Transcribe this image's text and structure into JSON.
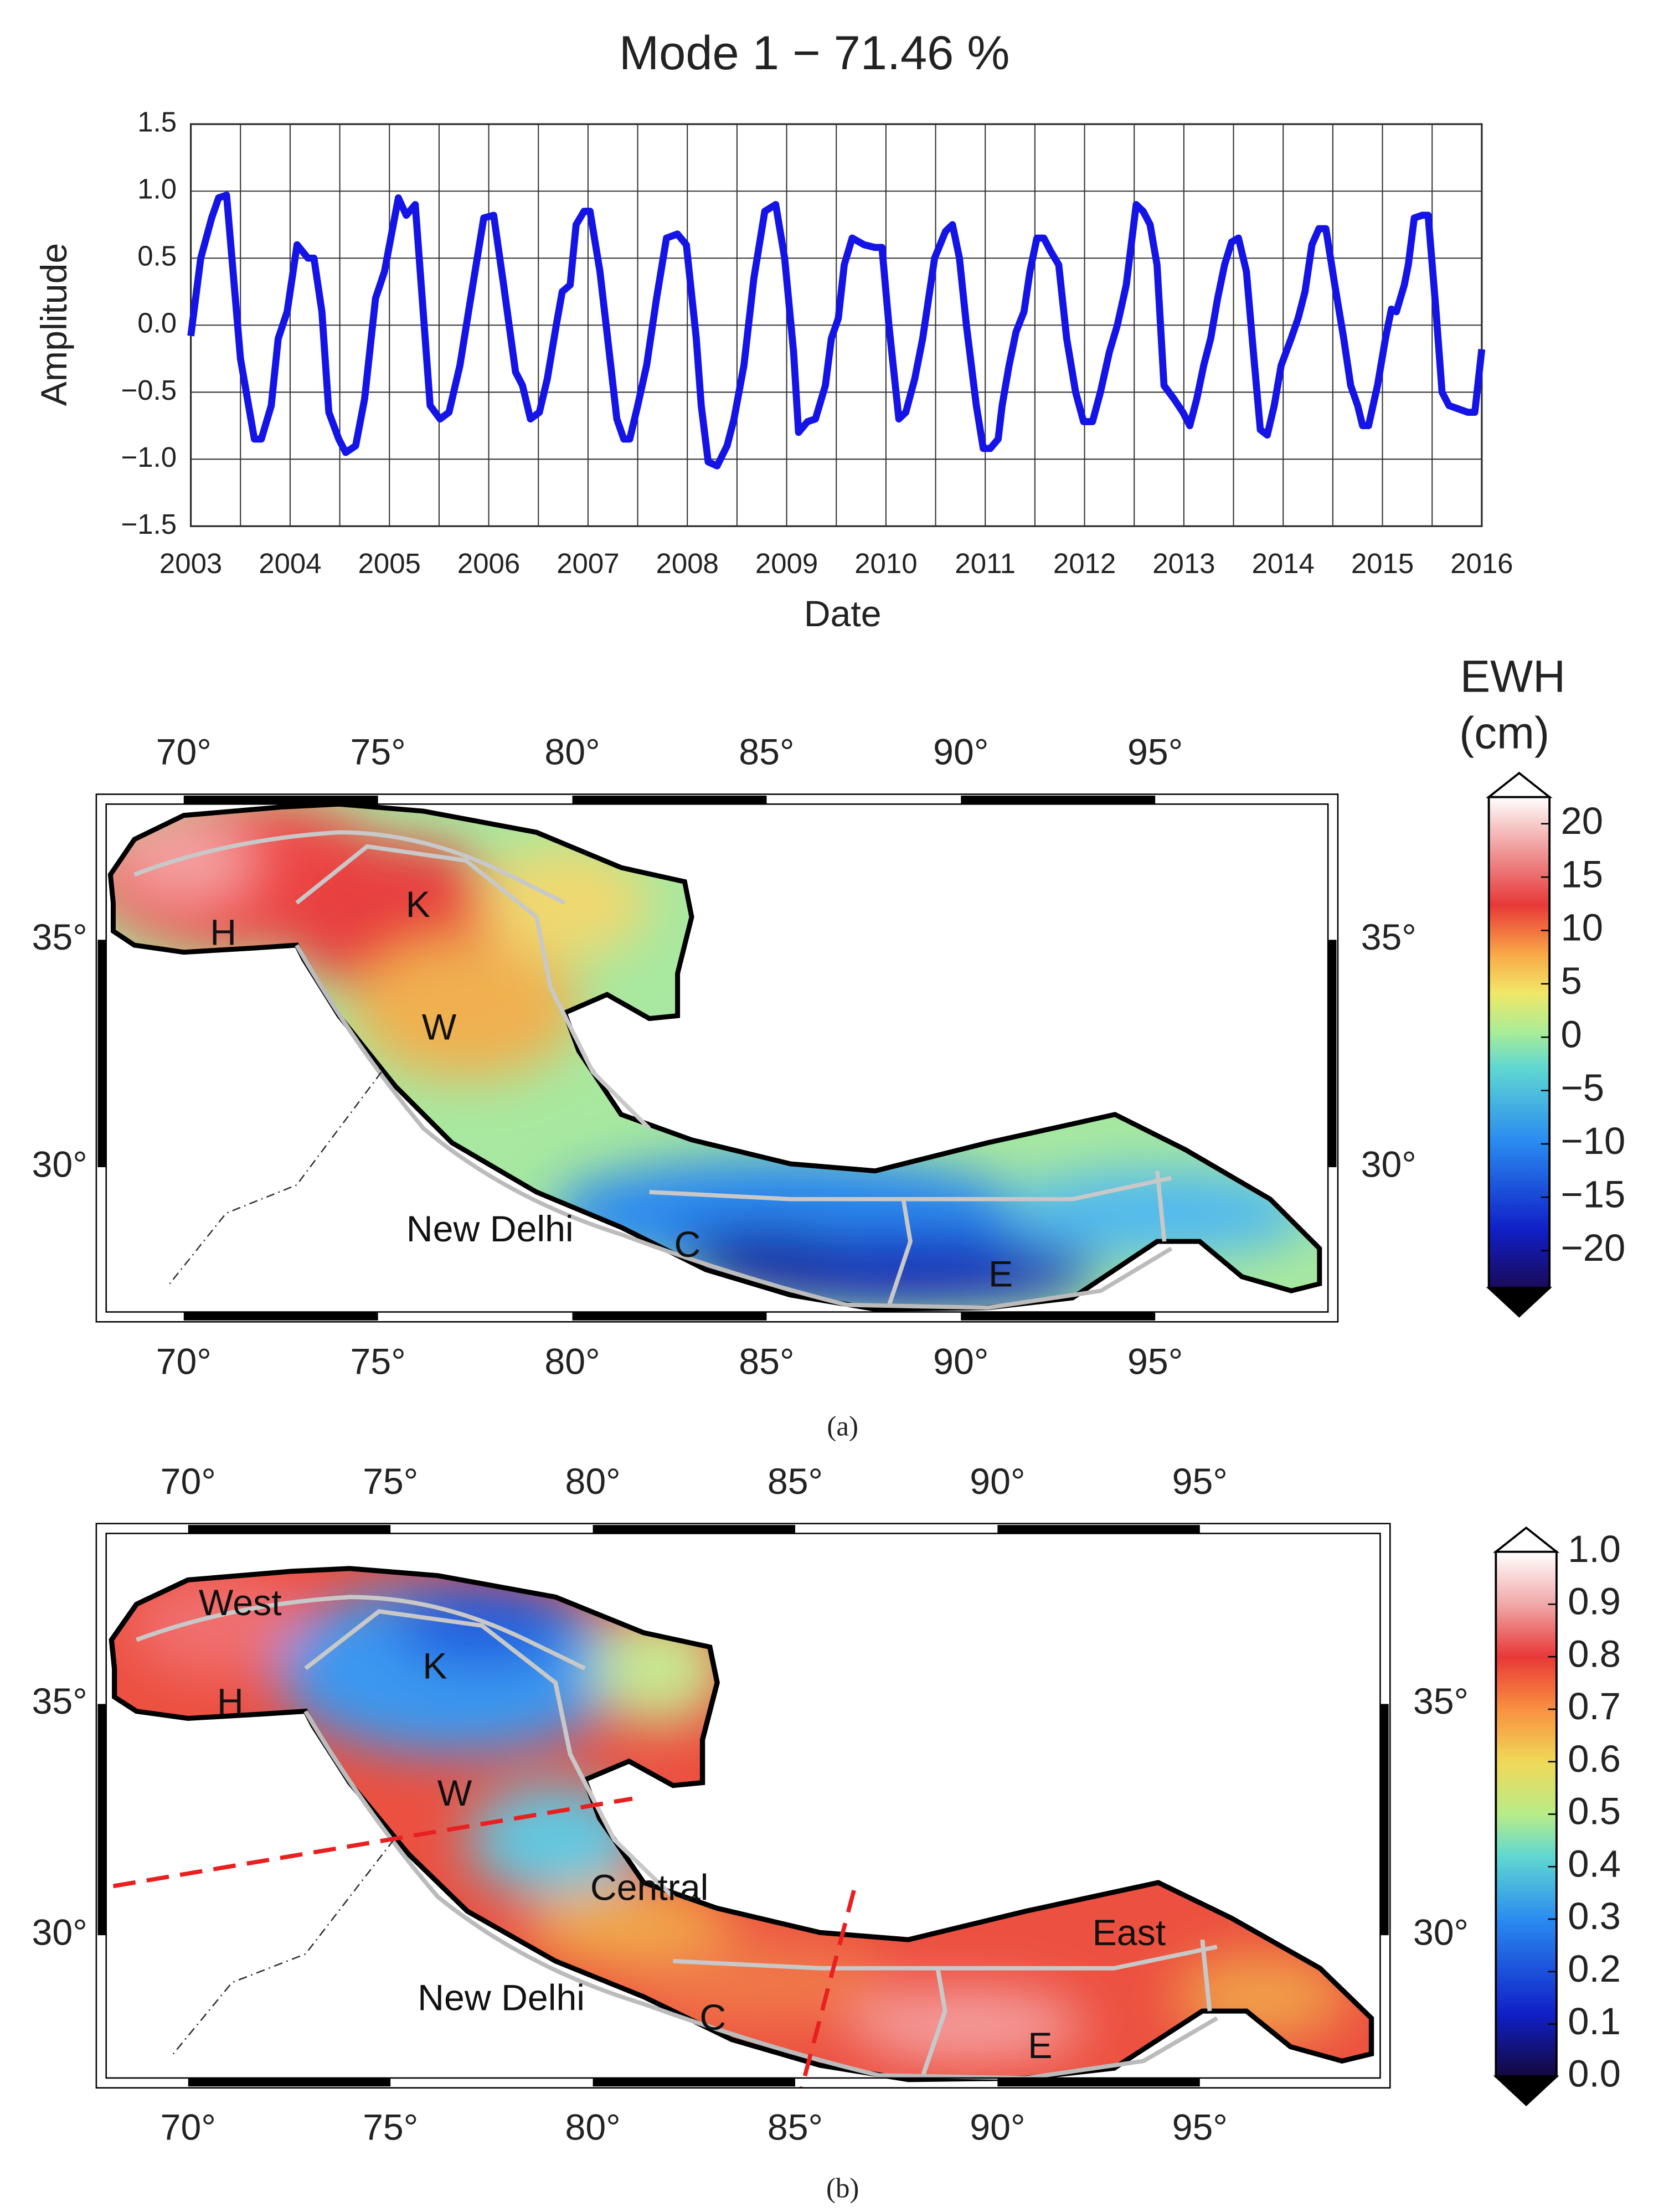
{
  "chart_data": {
    "type": "line",
    "title": "Mode 1 − 71.46 %",
    "x_label": "Date",
    "y_label": "Amplitude",
    "color": "#1414e6",
    "x": [
      2003.0,
      2003.1,
      2003.21,
      2003.28,
      2003.36,
      2003.5,
      2003.64,
      2003.71,
      2003.81,
      2003.88,
      2003.97,
      2004.07,
      2004.18,
      2004.24,
      2004.32,
      2004.39,
      2004.49,
      2004.56,
      2004.66,
      2004.75,
      2004.86,
      2004.95,
      2005.09,
      2005.17,
      2005.26,
      2005.33,
      2005.41,
      2005.51,
      2005.6,
      2005.71,
      2005.84,
      2005.95,
      2006.05,
      2006.15,
      2006.27,
      2006.34,
      2006.42,
      2006.51,
      2006.59,
      2006.68,
      2006.74,
      2006.82,
      2006.88,
      2006.96,
      2007.02,
      2007.12,
      2007.19,
      2007.29,
      2007.36,
      2007.42,
      2007.5,
      2007.59,
      2007.69,
      2007.79,
      2007.9,
      2007.99,
      2008.09,
      2008.14,
      2008.21,
      2008.3,
      2008.4,
      2008.47,
      2008.57,
      2008.67,
      2008.78,
      2008.89,
      2008.98,
      2009.07,
      2009.12,
      2009.21,
      2009.29,
      2009.39,
      2009.45,
      2009.52,
      2009.58,
      2009.66,
      2009.78,
      2009.89,
      2009.96,
      2010.03,
      2010.13,
      2010.2,
      2010.29,
      2010.37,
      2010.49,
      2010.6,
      2010.67,
      2010.74,
      2010.81,
      2010.91,
      2010.98,
      2011.05,
      2011.13,
      2011.17,
      2011.24,
      2011.31,
      2011.39,
      2011.45,
      2011.52,
      2011.59,
      2011.66,
      2011.74,
      2011.82,
      2011.91,
      2011.99,
      2012.08,
      2012.16,
      2012.25,
      2012.33,
      2012.42,
      2012.52,
      2012.59,
      2012.66,
      2012.73,
      2012.8,
      2012.9,
      2012.99,
      2013.06,
      2013.13,
      2013.2,
      2013.27,
      2013.34,
      2013.41,
      2013.48,
      2013.55,
      2013.63,
      2013.7,
      2013.77,
      2013.84,
      2013.91,
      2013.98,
      2014.08,
      2014.15,
      2014.22,
      2014.29,
      2014.36,
      2014.43,
      2014.52,
      2014.61,
      2014.68,
      2014.75,
      2014.8,
      2014.86,
      2014.95,
      2015.03,
      2015.09,
      2015.14,
      2015.22,
      2015.26,
      2015.32,
      2015.4,
      2015.46,
      2015.54,
      2015.6,
      2015.67,
      2015.86,
      2015.93,
      2016.0
    ],
    "values": [
      -0.08,
      0.5,
      0.8,
      0.95,
      0.97,
      -0.25,
      -0.85,
      -0.85,
      -0.6,
      -0.1,
      0.1,
      0.6,
      0.5,
      0.5,
      0.1,
      -0.65,
      -0.85,
      -0.95,
      -0.9,
      -0.55,
      0.2,
      0.4,
      0.95,
      0.82,
      0.9,
      0.2,
      -0.6,
      -0.7,
      -0.65,
      -0.3,
      0.3,
      0.8,
      0.82,
      0.3,
      -0.35,
      -0.45,
      -0.7,
      -0.65,
      -0.4,
      0.0,
      0.25,
      0.3,
      0.75,
      0.85,
      0.85,
      0.4,
      -0.05,
      -0.7,
      -0.85,
      -0.85,
      -0.6,
      -0.3,
      0.2,
      0.65,
      0.68,
      0.6,
      -0.1,
      -0.6,
      -1.02,
      -1.05,
      -0.9,
      -0.7,
      -0.3,
      0.35,
      0.85,
      0.9,
      0.5,
      -0.2,
      -0.8,
      -0.72,
      -0.7,
      -0.45,
      -0.1,
      0.05,
      0.45,
      0.65,
      0.6,
      0.58,
      0.58,
      0.0,
      -0.7,
      -0.65,
      -0.4,
      -0.1,
      0.5,
      0.7,
      0.75,
      0.5,
      0.0,
      -0.6,
      -0.92,
      -0.92,
      -0.85,
      -0.6,
      -0.3,
      -0.05,
      0.1,
      0.4,
      0.65,
      0.65,
      0.55,
      0.45,
      -0.1,
      -0.5,
      -0.72,
      -0.72,
      -0.5,
      -0.2,
      0.0,
      0.3,
      0.9,
      0.85,
      0.75,
      0.45,
      -0.45,
      -0.55,
      -0.65,
      -0.75,
      -0.55,
      -0.3,
      -0.1,
      0.2,
      0.45,
      0.62,
      0.65,
      0.4,
      -0.2,
      -0.78,
      -0.82,
      -0.6,
      -0.3,
      -0.1,
      0.05,
      0.25,
      0.6,
      0.72,
      0.72,
      0.3,
      -0.1,
      -0.45,
      -0.6,
      -0.75,
      -0.75,
      -0.45,
      -0.1,
      0.12,
      0.1,
      0.3,
      0.45,
      0.8,
      0.82,
      0.82,
      0.1,
      -0.5,
      -0.6,
      -0.65,
      -0.65,
      -0.18
    ],
    "xlim": [
      2003,
      2016
    ],
    "xticks": [
      2003,
      2004,
      2005,
      2006,
      2007,
      2008,
      2009,
      2010,
      2011,
      2012,
      2013,
      2014,
      2015,
      2016
    ],
    "x_grid": [
      2003.5,
      2004.5,
      2005.5,
      2006.5,
      2007.5,
      2008.5,
      2009.5,
      2010.5,
      2011.5,
      2012.5,
      2013.5,
      2014.5,
      2015.5
    ],
    "ylim": [
      -1.5,
      1.5
    ],
    "yticks": [
      {
        "value": -1.5,
        "label": "−1.5"
      },
      {
        "value": -1.0,
        "label": "−1.0"
      },
      {
        "value": -0.5,
        "label": "−0.5"
      },
      {
        "value": 0,
        "label": "0.0"
      },
      0.5,
      {
        "value": 1.0,
        "label": "1.0"
      },
      1.5
    ],
    "grid": true
  },
  "maps": [
    {
      "panel_label": "(a)",
      "lonlim": [
        67.75,
        99.7
      ],
      "latlim": [
        26.6,
        38.2
      ],
      "lon_ticks": [
        {
          "value": 70,
          "label": "70°"
        },
        {
          "value": 75,
          "label": "75°"
        },
        {
          "value": 80,
          "label": "80°"
        },
        {
          "value": 85,
          "label": "85°"
        },
        {
          "value": 90,
          "label": "90°"
        },
        {
          "value": 95,
          "label": "95°"
        }
      ],
      "lat_ticks": [
        {
          "value": 30,
          "label": "30°"
        },
        {
          "value": 35,
          "label": "35°"
        }
      ],
      "place_labels": [
        "H",
        "K",
        "W",
        "New Delhi",
        "C",
        "E"
      ],
      "colorbar": {
        "title": [
          "EWH",
          "(cm)"
        ],
        "lim": [
          -23.5,
          22.5
        ],
        "ticks": [
          {
            "value": -20,
            "label": "−20"
          },
          {
            "value": -15,
            "label": "−15"
          },
          {
            "value": -10,
            "label": "−10"
          },
          {
            "value": -5,
            "label": "−5"
          },
          0,
          5,
          10,
          15,
          20
        ]
      }
    },
    {
      "panel_label": "(b)",
      "lonlim": [
        67.73,
        99.7
      ],
      "latlim": [
        26.7,
        38.9
      ],
      "lon_ticks": [
        {
          "value": 70,
          "label": "70°"
        },
        {
          "value": 75,
          "label": "75°"
        },
        {
          "value": 80,
          "label": "80°"
        },
        {
          "value": 85,
          "label": "85°"
        },
        {
          "value": 90,
          "label": "90°"
        },
        {
          "value": 95,
          "label": "95°"
        }
      ],
      "lat_ticks": [
        {
          "value": 30,
          "label": "30°"
        },
        {
          "value": 35,
          "label": "35°"
        }
      ],
      "place_labels": [
        "West",
        "H",
        "K",
        "W",
        "Central",
        "New Delhi",
        "C",
        "East",
        "E"
      ],
      "colorbar": {
        "lim": [
          0,
          1
        ],
        "ticks": [
          {
            "value": 0,
            "label": "0.0"
          },
          0.1,
          0.2,
          0.3,
          0.4,
          0.5,
          0.6,
          0.7,
          0.8,
          0.9,
          {
            "value": 1,
            "label": "1.0"
          }
        ]
      }
    }
  ]
}
